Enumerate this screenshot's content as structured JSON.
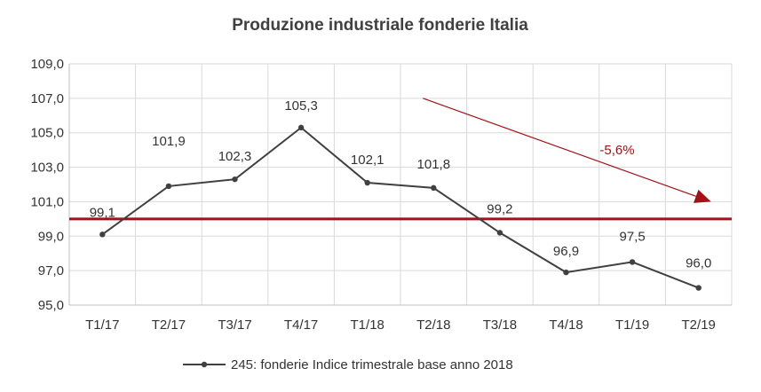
{
  "chart_data": {
    "type": "line",
    "title": "Produzione industriale fonderie Italia",
    "categories": [
      "T1/17",
      "T2/17",
      "T3/17",
      "T4/17",
      "T1/18",
      "T2/18",
      "T3/18",
      "T4/18",
      "T1/19",
      "T2/19"
    ],
    "series": [
      {
        "name": "245: fonderie Indice trimestrale base anno 2018",
        "values": [
          99.1,
          101.9,
          102.3,
          105.3,
          102.1,
          101.8,
          99.2,
          96.9,
          97.5,
          96.0
        ],
        "labels": [
          "99,1",
          "101,9",
          "102,3",
          "105,3",
          "102,1",
          "101,8",
          "99,2",
          "96,9",
          "97,5",
          "96,0"
        ],
        "color": "#404040"
      }
    ],
    "ylim": [
      95,
      109
    ],
    "yticks": [
      95,
      97,
      99,
      101,
      103,
      105,
      107,
      109
    ],
    "ytick_labels": [
      "95,0",
      "97,0",
      "99,0",
      "101,0",
      "103,0",
      "105,0",
      "107,0",
      "109,0"
    ],
    "reference_line": {
      "value": 100,
      "color": "#a50f15"
    },
    "trend_arrow": {
      "label": "-5,6%",
      "from_x": "T2/18",
      "from_y": 107,
      "to_x": "T2/19",
      "to_y": 101,
      "color": "#a50f15"
    },
    "grid": true,
    "legend_position": "bottom"
  }
}
